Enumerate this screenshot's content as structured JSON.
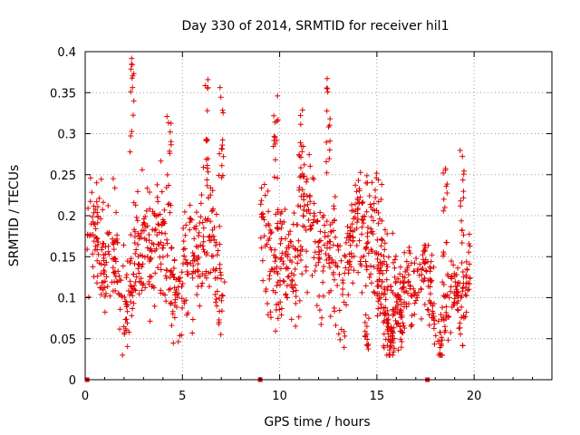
{
  "chart_data": {
    "type": "scatter",
    "title": "Day 330 of 2014, SRMTID for receiver hil1",
    "xlabel": "GPS time / hours",
    "ylabel": "SRMTID / TECUs",
    "xlim": [
      0,
      24
    ],
    "ylim": [
      0,
      0.4
    ],
    "x_ticks": [
      0,
      5,
      10,
      15,
      20
    ],
    "y_ticks": [
      0,
      0.05,
      0.1,
      0.15,
      0.2,
      0.25,
      0.3,
      0.35,
      0.4
    ],
    "x_tick_labels": [
      "0",
      "5",
      "10",
      "15",
      "20"
    ],
    "y_tick_labels": [
      "0",
      "0.05",
      "0.1",
      "0.15",
      "0.2",
      "0.25",
      "0.3",
      "0.35",
      "0.4"
    ],
    "grid": true,
    "marker": "plus",
    "color": "#e00000",
    "zero_markers_x": [
      0.1,
      9.0,
      17.6
    ],
    "clusters": [
      {
        "x0": 0.1,
        "x1": 7.2,
        "base": 0.145,
        "spread": 0.07,
        "spikes": [
          [
            2.4,
            0.395
          ],
          [
            4.3,
            0.33
          ],
          [
            6.2,
            0.37
          ],
          [
            7.0,
            0.365
          ]
        ]
      },
      {
        "x0": 9.0,
        "x1": 16.0,
        "base": 0.16,
        "spread": 0.075,
        "spikes": [
          [
            9.8,
            0.355
          ],
          [
            11.1,
            0.33
          ],
          [
            12.5,
            0.37
          ],
          [
            14.5,
            0.035
          ]
        ]
      },
      {
        "x0": 15.0,
        "x1": 19.8,
        "base": 0.1,
        "spread": 0.045,
        "spikes": [
          [
            19.4,
            0.28
          ],
          [
            18.5,
            0.26
          ],
          [
            16.3,
            0.035
          ]
        ]
      }
    ]
  }
}
